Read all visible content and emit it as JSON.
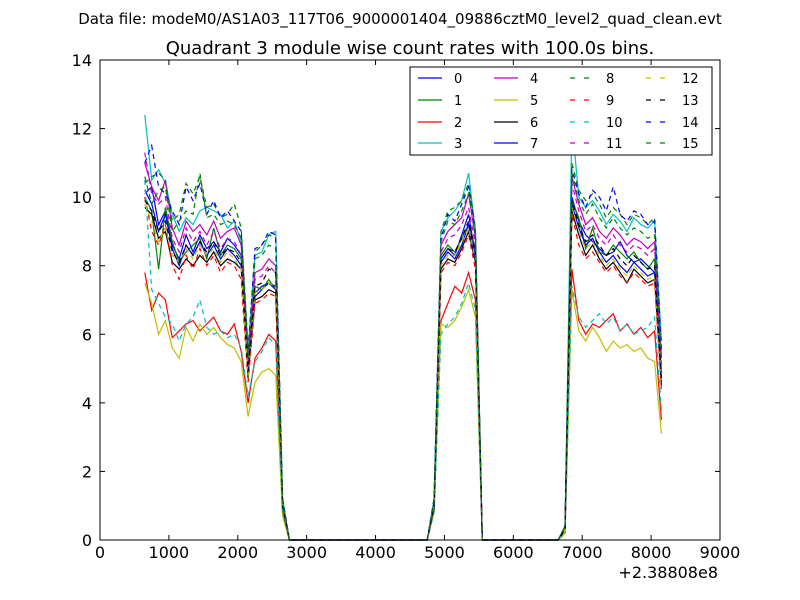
{
  "suptitle": "Data file: modeM0/AS1A03_117T06_9000001404_09886cztM0_level2_quad_clean.evt",
  "chart_data": {
    "type": "line",
    "title": "Quadrant 3 module wise count rates with 100.0s bins.",
    "xlabel": "",
    "ylabel": "",
    "x_offset_label": "+2.38808e8",
    "xlim": [
      0,
      9000
    ],
    "ylim": [
      0,
      14
    ],
    "xticks": [
      "0",
      "1000",
      "2000",
      "3000",
      "4000",
      "5000",
      "6000",
      "7000",
      "8000",
      "9000"
    ],
    "yticks": [
      "0",
      "2",
      "4",
      "6",
      "8",
      "10",
      "12",
      "14"
    ],
    "legend_position": "top-right",
    "x": [
      650,
      750,
      850,
      950,
      1050,
      1150,
      1250,
      1350,
      1450,
      1550,
      1650,
      1750,
      1850,
      1950,
      2050,
      2150,
      2250,
      2350,
      2450,
      2550,
      2650,
      2750,
      2850,
      4750,
      4850,
      4950,
      5050,
      5150,
      5250,
      5350,
      5450,
      5550,
      6650,
      6750,
      6850,
      6950,
      7050,
      7150,
      7250,
      7350,
      7450,
      7550,
      7650,
      7750,
      7850,
      7950,
      8050,
      8150
    ],
    "series": [
      {
        "name": "0",
        "color": "#0000ff",
        "style": "solid",
        "values": [
          10.1,
          10.3,
          9.2,
          9.6,
          8.6,
          8.2,
          8.9,
          8.4,
          8.9,
          8.5,
          8.7,
          8.4,
          8.8,
          8.6,
          8.3,
          5.0,
          7.2,
          7.4,
          7.5,
          7.4,
          1.0,
          0,
          0,
          0,
          1.0,
          8.2,
          8.5,
          8.3,
          8.9,
          9.5,
          8.3,
          0,
          0,
          0.3,
          10.0,
          9.3,
          8.9,
          8.7,
          8.5,
          8.3,
          8.4,
          8.7,
          8.3,
          8.1,
          8.2,
          8.0,
          7.8,
          4.9
        ]
      },
      {
        "name": "1",
        "color": "#008000",
        "style": "solid",
        "values": [
          10.0,
          9.6,
          7.9,
          9.7,
          8.7,
          8.1,
          8.4,
          8.6,
          8.8,
          8.2,
          9.1,
          8.3,
          8.6,
          8.5,
          8.2,
          4.7,
          7.4,
          7.3,
          7.6,
          7.3,
          1.0,
          0,
          0,
          0,
          1.0,
          8.3,
          8.6,
          8.4,
          8.8,
          9.2,
          8.5,
          0,
          0,
          0.3,
          9.9,
          9.4,
          8.5,
          9.1,
          8.4,
          8.3,
          8.6,
          8.4,
          8.2,
          8.4,
          8.1,
          7.9,
          8.2,
          4.7
        ]
      },
      {
        "name": "2",
        "color": "#ff0000",
        "style": "solid",
        "values": [
          7.8,
          6.7,
          7.2,
          7.0,
          5.9,
          6.1,
          6.3,
          6.4,
          6.1,
          6.3,
          6.5,
          6.1,
          6.0,
          6.3,
          5.5,
          4.0,
          5.3,
          5.6,
          6.0,
          5.8,
          0.8,
          0,
          0,
          0,
          0.9,
          6.4,
          6.9,
          7.4,
          7.2,
          7.8,
          7.0,
          0,
          0,
          0.2,
          7.9,
          6.4,
          6.0,
          6.3,
          6.2,
          6.4,
          6.6,
          6.1,
          6.3,
          6.0,
          6.2,
          5.9,
          6.1,
          3.5
        ]
      },
      {
        "name": "3",
        "color": "#00bfbf",
        "style": "solid",
        "values": [
          12.4,
          10.5,
          10.8,
          10.4,
          9.5,
          9.0,
          9.4,
          9.2,
          9.6,
          9.7,
          9.6,
          9.5,
          9.1,
          9.3,
          8.7,
          5.5,
          8.3,
          8.4,
          8.9,
          9.0,
          1.2,
          0,
          0,
          0,
          1.2,
          9.0,
          9.4,
          9.6,
          9.9,
          10.7,
          9.0,
          0,
          0,
          0.4,
          12.2,
          10.0,
          9.7,
          9.9,
          9.6,
          9.2,
          9.5,
          9.3,
          9.0,
          9.4,
          9.2,
          9.1,
          9.3,
          5.8
        ]
      },
      {
        "name": "4",
        "color": "#bf00bf",
        "style": "solid",
        "values": [
          11.0,
          10.3,
          9.9,
          10.5,
          9.1,
          8.6,
          9.3,
          9.0,
          9.2,
          8.9,
          9.3,
          8.8,
          9.0,
          9.1,
          8.6,
          5.2,
          7.8,
          7.9,
          8.2,
          8.0,
          1.1,
          0,
          0,
          0,
          1.1,
          8.6,
          9.0,
          9.2,
          9.4,
          10.1,
          8.8,
          0,
          0,
          0.3,
          10.6,
          9.8,
          9.2,
          9.4,
          9.0,
          8.8,
          9.1,
          8.9,
          8.6,
          8.8,
          8.7,
          8.5,
          8.7,
          5.3
        ]
      },
      {
        "name": "5",
        "color": "#bfbf00",
        "style": "solid",
        "values": [
          7.5,
          6.9,
          6.0,
          6.4,
          5.6,
          5.3,
          6.2,
          5.8,
          6.3,
          6.0,
          6.2,
          5.9,
          5.7,
          5.6,
          5.2,
          3.6,
          4.6,
          4.9,
          5.0,
          4.8,
          0.7,
          0,
          0,
          0,
          0.8,
          6.3,
          6.2,
          6.4,
          6.8,
          7.3,
          6.5,
          0,
          0,
          0.2,
          7.3,
          6.1,
          5.8,
          6.2,
          5.9,
          5.5,
          5.8,
          5.6,
          5.7,
          5.5,
          5.6,
          5.3,
          5.2,
          3.1
        ]
      },
      {
        "name": "6",
        "color": "#000000",
        "style": "solid",
        "values": [
          9.7,
          9.5,
          8.8,
          9.0,
          8.1,
          7.9,
          8.2,
          8.0,
          8.3,
          8.1,
          8.4,
          8.0,
          8.2,
          8.1,
          7.9,
          4.8,
          7.0,
          7.1,
          7.3,
          7.2,
          0.9,
          0,
          0,
          0,
          0.9,
          7.9,
          8.2,
          8.1,
          8.5,
          9.0,
          8.1,
          0,
          0,
          0.3,
          9.6,
          8.9,
          8.3,
          8.6,
          8.2,
          7.9,
          8.1,
          7.8,
          7.5,
          7.9,
          7.7,
          7.5,
          7.6,
          4.5
        ]
      },
      {
        "name": "7",
        "color": "#0000ff",
        "style": "solid",
        "values": [
          10.2,
          9.8,
          9.0,
          9.5,
          8.5,
          8.0,
          8.6,
          8.3,
          8.7,
          8.3,
          8.6,
          8.2,
          8.5,
          8.3,
          8.0,
          4.9,
          7.1,
          7.3,
          7.5,
          7.3,
          1.0,
          0,
          0,
          0,
          1.0,
          8.1,
          8.4,
          8.2,
          8.6,
          9.2,
          8.2,
          0,
          0,
          0.3,
          9.8,
          9.1,
          8.6,
          8.8,
          8.4,
          8.1,
          8.3,
          8.0,
          7.8,
          8.1,
          7.9,
          7.7,
          7.8,
          4.6
        ]
      },
      {
        "name": "8",
        "color": "#008000",
        "style": "dashed",
        "values": [
          10.4,
          10.6,
          10.7,
          10.5,
          9.3,
          9.5,
          10.4,
          10.1,
          10.6,
          9.7,
          9.8,
          9.4,
          9.5,
          9.8,
          9.1,
          5.6,
          8.4,
          8.6,
          8.9,
          8.8,
          1.2,
          0,
          0,
          0,
          1.2,
          9.0,
          9.6,
          9.7,
          9.9,
          10.4,
          9.1,
          0,
          0,
          0.4,
          11.0,
          10.2,
          9.9,
          10.1,
          9.8,
          9.4,
          9.7,
          9.5,
          9.2,
          9.5,
          9.4,
          9.2,
          9.4,
          5.6
        ]
      },
      {
        "name": "9",
        "color": "#ff0000",
        "style": "dashed",
        "values": [
          10.0,
          9.0,
          8.6,
          9.2,
          8.0,
          7.6,
          8.3,
          7.9,
          8.5,
          8.0,
          8.3,
          7.8,
          8.1,
          8.0,
          7.6,
          4.6,
          6.9,
          7.0,
          7.2,
          7.1,
          0.9,
          0,
          0,
          0,
          0.9,
          7.8,
          8.1,
          8.0,
          8.4,
          8.9,
          7.9,
          0,
          0,
          0.3,
          9.5,
          8.6,
          8.2,
          8.4,
          8.1,
          7.8,
          8.0,
          7.7,
          7.5,
          7.8,
          7.6,
          7.4,
          7.5,
          4.4
        ]
      },
      {
        "name": "10",
        "color": "#00bfbf",
        "style": "dashed",
        "values": [
          10.5,
          7.3,
          6.9,
          6.5,
          6.3,
          5.8,
          6.3,
          6.5,
          7.0,
          6.2,
          6.0,
          6.1,
          5.9,
          6.0,
          5.6,
          4.2,
          5.2,
          5.5,
          5.9,
          5.7,
          0.8,
          0,
          0,
          0,
          0.8,
          6.0,
          6.3,
          6.5,
          6.9,
          7.5,
          6.7,
          0,
          0,
          0.2,
          7.4,
          6.5,
          6.2,
          6.4,
          6.6,
          6.3,
          6.5,
          6.1,
          6.3,
          6.0,
          6.1,
          6.2,
          6.5,
          3.8
        ]
      },
      {
        "name": "11",
        "color": "#bf00bf",
        "style": "dashed",
        "values": [
          11.3,
          10.1,
          9.8,
          10.0,
          8.8,
          8.4,
          9.1,
          8.7,
          9.0,
          8.6,
          9.0,
          8.5,
          8.8,
          8.7,
          8.3,
          5.1,
          7.6,
          7.7,
          8.0,
          7.8,
          1.1,
          0,
          0,
          0,
          1.0,
          8.4,
          8.8,
          8.9,
          9.2,
          9.7,
          8.6,
          0,
          0,
          0.3,
          10.4,
          9.6,
          9.0,
          9.2,
          8.8,
          8.6,
          8.9,
          8.6,
          8.4,
          8.6,
          8.5,
          8.3,
          8.5,
          5.1
        ]
      },
      {
        "name": "12",
        "color": "#bfbf00",
        "style": "dashed",
        "values": [
          9.8,
          9.3,
          8.7,
          9.1,
          8.3,
          8.1,
          8.5,
          8.2,
          8.6,
          8.3,
          8.5,
          8.1,
          8.4,
          8.2,
          7.9,
          4.8,
          7.2,
          7.3,
          7.5,
          7.4,
          1.0,
          0,
          0,
          0,
          1.0,
          8.0,
          8.3,
          8.3,
          8.7,
          9.1,
          8.2,
          0,
          0,
          0.3,
          9.7,
          9.0,
          8.5,
          8.7,
          8.3,
          8.0,
          8.2,
          7.9,
          7.7,
          8.0,
          7.8,
          7.6,
          7.7,
          4.6
        ]
      },
      {
        "name": "13",
        "color": "#000000",
        "style": "dashed",
        "values": [
          9.9,
          9.6,
          9.0,
          9.3,
          8.4,
          8.1,
          8.6,
          8.3,
          8.7,
          8.4,
          8.7,
          8.3,
          8.5,
          8.4,
          8.1,
          4.9,
          7.4,
          7.5,
          7.9,
          7.8,
          1.0,
          0,
          0,
          0,
          1.0,
          8.2,
          8.5,
          8.4,
          8.8,
          9.3,
          8.4,
          0,
          0,
          0.3,
          9.9,
          9.2,
          8.7,
          8.9,
          8.6,
          8.3,
          8.5,
          8.2,
          8.0,
          8.3,
          8.1,
          7.9,
          8.0,
          4.7
        ]
      },
      {
        "name": "14",
        "color": "#0000ff",
        "style": "dashed",
        "values": [
          11.0,
          11.5,
          10.3,
          10.1,
          9.6,
          9.2,
          10.3,
          9.9,
          10.4,
          9.5,
          9.9,
          9.4,
          9.6,
          9.3,
          9.0,
          5.4,
          8.5,
          8.6,
          9.0,
          8.9,
          1.2,
          0,
          0,
          0,
          1.2,
          8.8,
          9.5,
          9.3,
          9.8,
          10.3,
          9.0,
          0,
          0,
          0.4,
          10.8,
          10.1,
          9.7,
          10.2,
          10.0,
          9.6,
          10.3,
          9.5,
          9.3,
          9.6,
          9.5,
          9.2,
          9.3,
          5.5
        ]
      },
      {
        "name": "15",
        "color": "#008000",
        "style": "dashed",
        "values": [
          10.6,
          9.8,
          10.2,
          10.3,
          9.0,
          9.3,
          9.6,
          9.5,
          10.7,
          9.4,
          9.5,
          9.2,
          9.3,
          9.2,
          8.8,
          5.3,
          8.2,
          8.3,
          8.6,
          8.5,
          1.1,
          0,
          0,
          0,
          1.1,
          8.7,
          9.3,
          9.2,
          9.6,
          10.1,
          8.9,
          0,
          0,
          0.4,
          10.7,
          9.9,
          9.5,
          9.8,
          9.4,
          9.1,
          9.4,
          9.1,
          8.9,
          9.1,
          9.0,
          8.8,
          8.9,
          5.3
        ]
      }
    ]
  }
}
